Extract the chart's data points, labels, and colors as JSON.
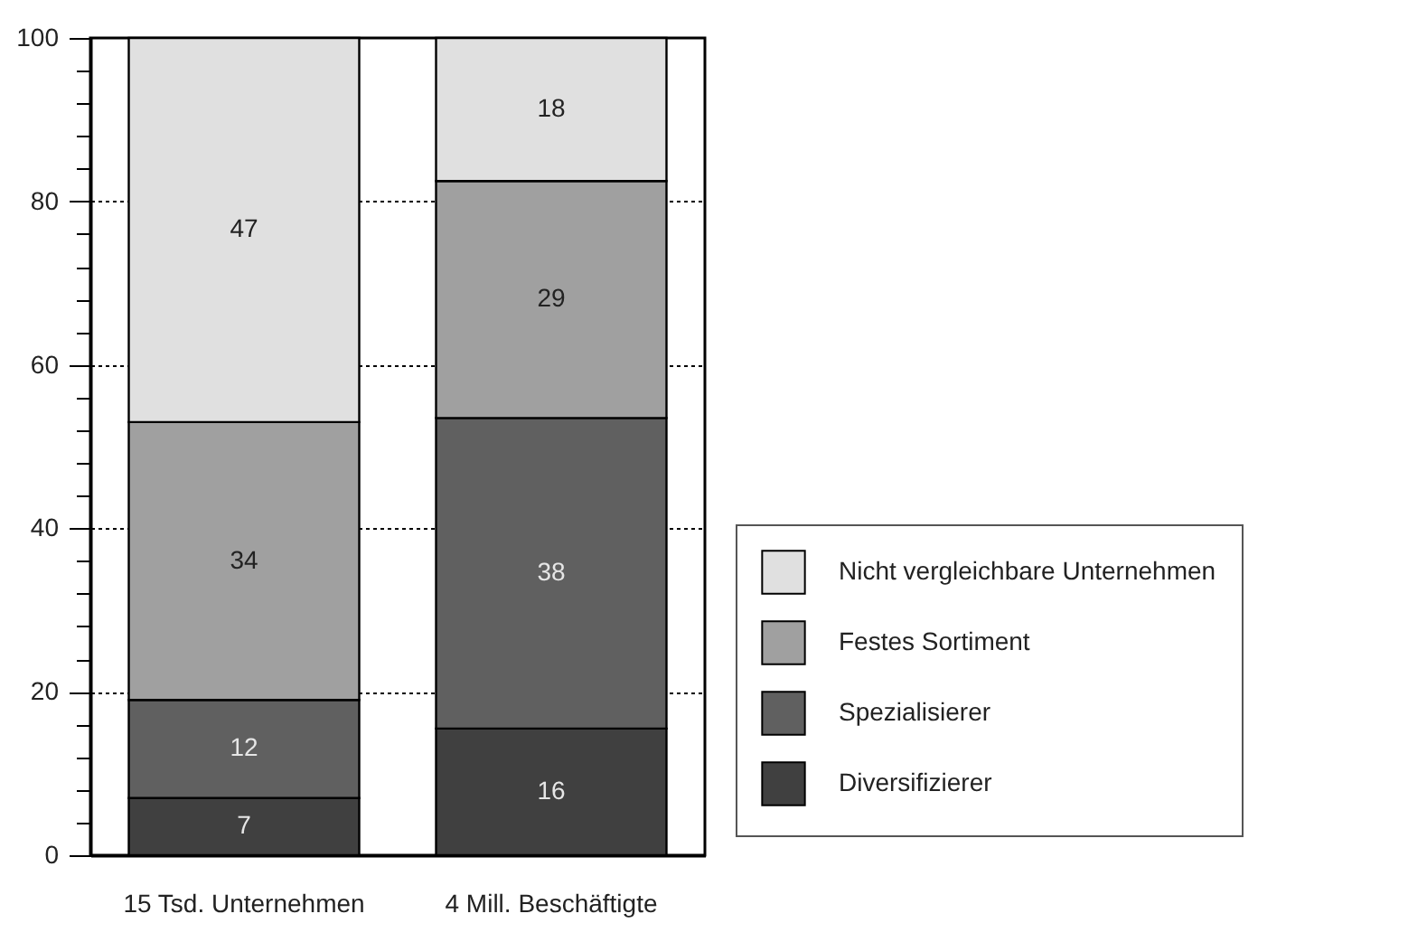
{
  "chart_data": {
    "type": "bar",
    "stacked": true,
    "categories": [
      "15 Tsd. Unternehmen",
      "4 Mill. Beschäftigte"
    ],
    "series": [
      {
        "name": "Diversifizierer",
        "color": "#404040",
        "values": [
          7,
          15.5
        ],
        "value_labels": [
          "7",
          "16"
        ]
      },
      {
        "name": "Spezialisierer",
        "color": "#606060",
        "values": [
          12,
          38
        ],
        "value_labels": [
          "12",
          "38"
        ]
      },
      {
        "name": "Festes Sortiment",
        "color": "#a0a0a0",
        "values": [
          34,
          29
        ],
        "value_labels": [
          "34",
          "29"
        ]
      },
      {
        "name": "Nicht vergleichbare Unternehmen",
        "color": "#e0e0e0",
        "values": [
          47,
          17.5
        ],
        "value_labels": [
          "47",
          "18"
        ]
      }
    ],
    "ylim": [
      0,
      100
    ],
    "yticks": [
      0,
      {
        "value": 4,
        "label": null
      },
      {
        "value": 8,
        "label": null
      },
      {
        "value": 12,
        "label": null
      },
      {
        "value": 16,
        "label": null
      },
      20,
      {
        "value": 24,
        "label": null
      },
      {
        "value": 28,
        "label": null
      },
      {
        "value": 32,
        "label": null
      },
      {
        "value": 36,
        "label": null
      },
      40,
      {
        "value": 44,
        "label": null
      },
      {
        "value": 48,
        "label": null
      },
      {
        "value": 52,
        "label": null
      },
      {
        "value": 56,
        "label": null
      },
      60,
      {
        "value": 64,
        "label": null
      },
      {
        "value": 68,
        "label": null
      },
      {
        "value": 72,
        "label": null
      },
      {
        "value": 76,
        "label": null
      },
      80,
      {
        "value": 84,
        "label": null
      },
      {
        "value": 88,
        "label": null
      },
      {
        "value": 92,
        "label": null
      },
      {
        "value": 96,
        "label": null
      },
      100
    ],
    "grid": "y",
    "line_style": "dotted",
    "legend": "bottom right"
  }
}
